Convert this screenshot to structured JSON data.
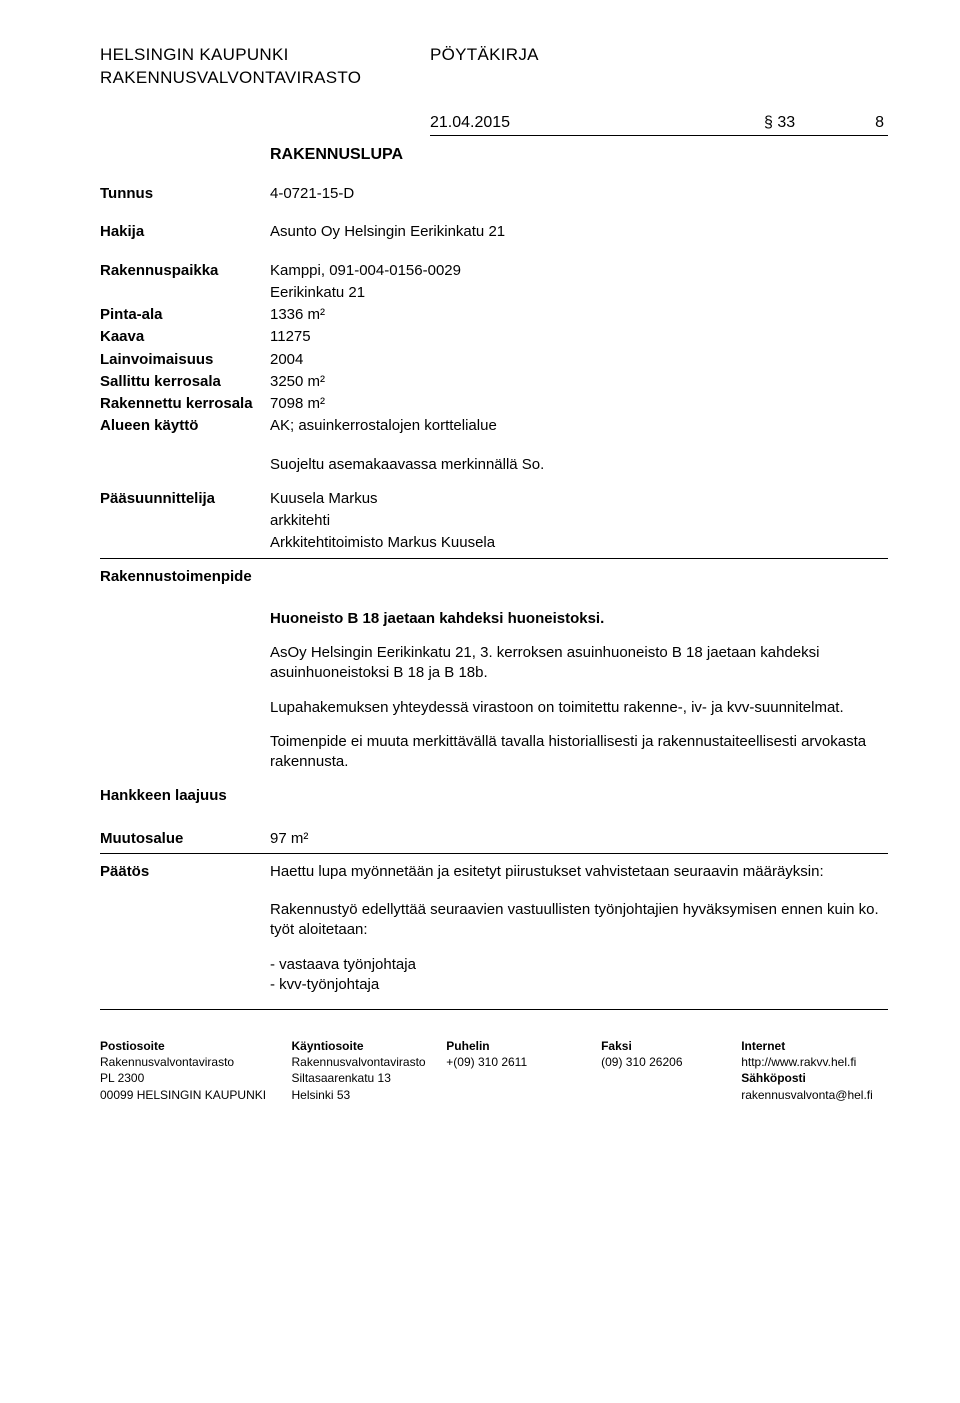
{
  "header": {
    "org1": "HELSINGIN KAUPUNKI",
    "org2": "RAKENNUSVALVONTAVIRASTO",
    "docType": "PÖYTÄKIRJA",
    "date": "21.04.2015",
    "section": "§ 33",
    "page": "8"
  },
  "permitType": "RAKENNUSLUPA",
  "tunnus": {
    "label": "Tunnus",
    "value": "4-0721-15-D"
  },
  "hakija": {
    "label": "Hakija",
    "value": "Asunto Oy Helsingin Eerikinkatu 21"
  },
  "site": {
    "rakennuspaikka": {
      "label": "Rakennuspaikka",
      "value": "Kamppi, 091-004-0156-0029"
    },
    "address": "Eerikinkatu 21",
    "pintaAla": {
      "label": "Pinta-ala",
      "value": "1336 m²"
    },
    "kaava": {
      "label": "Kaava",
      "value": "11275"
    },
    "lainvoimaisuus": {
      "label": "Lainvoimaisuus",
      "value": "2004"
    },
    "sallittuKerrosala": {
      "label": "Sallittu kerrosala",
      "value": "3250 m²"
    },
    "rakennettuKerrosala": {
      "label": "Rakennettu kerrosala",
      "value": "7098 m²"
    },
    "alueenKaytto": {
      "label": "Alueen käyttö",
      "value": "AK; asuinkerrostalojen korttelialue"
    },
    "suojelu": "Suojeltu asemakaavassa merkinnällä So."
  },
  "paasuunnittelija": {
    "label": "Pääsuunnittelija",
    "name": "Kuusela Markus",
    "title": "arkkitehti",
    "office": "Arkkitehtitoimisto Markus Kuusela"
  },
  "rakennustoimenpide": {
    "label": "Rakennustoimenpide",
    "headline": "Huoneisto B 18 jaetaan kahdeksi huoneistoksi.",
    "p1": "AsOy Helsingin Eerikinkatu 21, 3. kerroksen asuinhuoneisto B 18 jaetaan kahdeksi asuinhuoneistoksi B 18 ja B 18b.",
    "p2": "Lupahakemuksen yhteydessä virastoon on toimitettu rakenne-, iv- ja kvv-suunnitelmat.",
    "p3": "Toimenpide ei muuta merkittävällä tavalla historiallisesti ja rakennustaiteellisesti arvokasta rakennusta."
  },
  "hankkeenLaajuus": {
    "label": "Hankkeen laajuus"
  },
  "muutosalue": {
    "label": "Muutosalue",
    "value": "97 m²"
  },
  "paatos": {
    "label": "Päätös",
    "p1": "Haettu lupa myönnetään ja esitetyt piirustukset vahvistetaan seuraavin määräyksin:",
    "p2": "Rakennustyö edellyttää seuraavien vastuullisten työnjohtajien hyväksymisen ennen kuin ko. työt aloitetaan:",
    "b1": "- vastaava työnjohtaja",
    "b2": "- kvv-työnjohtaja"
  },
  "footer": {
    "c1": {
      "h": "Postiosoite",
      "l1": "Rakennusvalvontavirasto",
      "l2": "PL 2300",
      "l3": "00099 HELSINGIN KAUPUNKI"
    },
    "c2": {
      "h": "Käyntiosoite",
      "l1": "Rakennusvalvontavirasto",
      "l2": "Siltasaarenkatu 13",
      "l3": "Helsinki 53"
    },
    "c3": {
      "h": "Puhelin",
      "l1": "+(09) 310 2611"
    },
    "c4": {
      "h": "Faksi",
      "l1": "(09) 310 26206"
    },
    "c5": {
      "h": "Internet",
      "l1": "http://www.rakvv.hel.fi",
      "l2h": "Sähköposti",
      "l3": "rakennusvalvonta@hel.fi"
    }
  }
}
